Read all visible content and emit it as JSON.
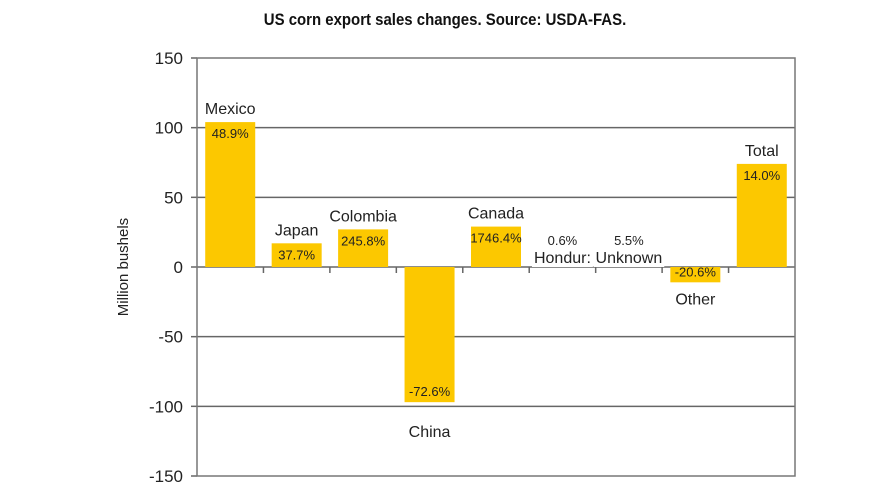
{
  "chart_data": {
    "type": "bar",
    "title": "US corn export sales changes. Source: USDA-FAS.",
    "ylabel": "Million bushels",
    "xlabel": "",
    "ylim": [
      -150,
      150
    ],
    "yticks": [
      150,
      100,
      50,
      0,
      -50,
      -100,
      -150
    ],
    "grid": true,
    "categories": [
      "Mexico",
      "Japan",
      "Colombia",
      "China",
      "Canada",
      "Hondur:",
      "Unknown",
      "Other",
      "Total"
    ],
    "values": [
      104,
      17,
      27,
      -97,
      29,
      0.5,
      1,
      -11,
      74
    ],
    "data_labels": [
      "48.9%",
      "37.7%",
      "245.8%",
      "-72.6%",
      "1746.4%",
      "0.6%",
      "5.5%",
      "-20.6%",
      "14.0%"
    ],
    "bar_color": "#FCC800"
  }
}
